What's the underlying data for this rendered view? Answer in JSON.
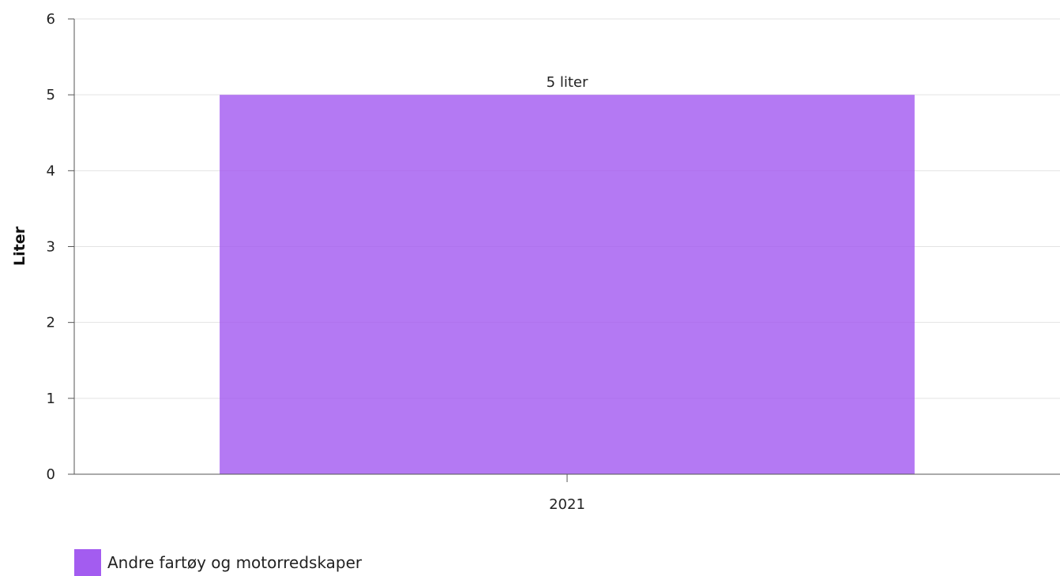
{
  "chart_data": {
    "type": "bar",
    "categories": [
      "2021"
    ],
    "series": [
      {
        "name": "Andre fartøy og motorredskaper",
        "values": [
          5
        ],
        "color": "#a35cf0"
      }
    ],
    "data_labels": [
      "5 liter"
    ],
    "ylabel": "Liter",
    "xlabel": "",
    "ylim": [
      0,
      6
    ],
    "yticks": [
      0,
      1,
      2,
      3,
      4,
      5,
      6
    ],
    "grid": true,
    "legend_position": "bottom-left"
  }
}
